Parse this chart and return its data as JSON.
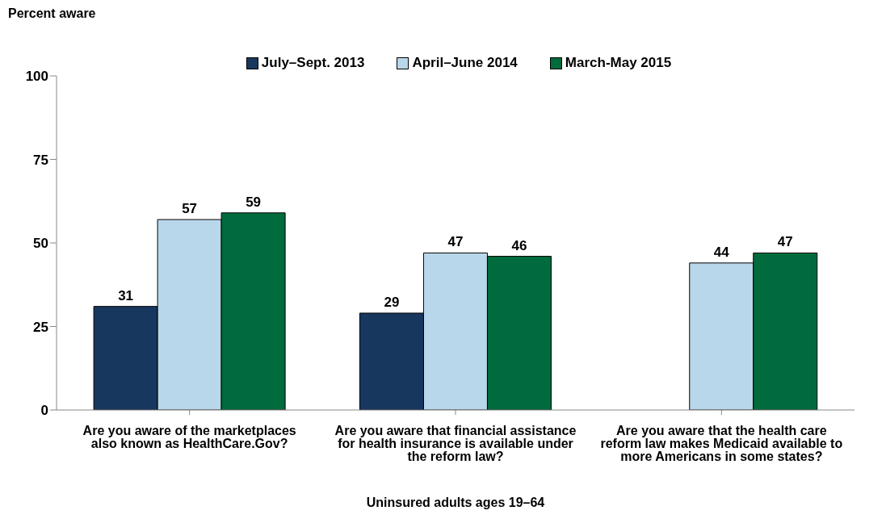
{
  "chart_data": {
    "type": "bar",
    "ylabel": "Percent aware",
    "xlabel": "Uninsured adults ages 19–64",
    "categories": [
      "Are you aware of the marketplaces also known as HealthCare.Gov?",
      "Are you aware that financial assistance for health insurance is available under the reform law?",
      "Are you aware that the health care reform law makes Medicaid available to more Americans in some states?"
    ],
    "series": [
      {
        "name": "July–Sept. 2013",
        "color": "#17375e",
        "values": [
          31,
          29,
          null
        ]
      },
      {
        "name": "April–June 2014",
        "color": "#b9d7ea",
        "values": [
          57,
          47,
          44
        ]
      },
      {
        "name": "March-May 2015",
        "color": "#006b3c",
        "values": [
          59,
          46,
          47
        ]
      }
    ],
    "ylim": [
      0,
      100
    ],
    "yticks": [
      0,
      25,
      50,
      75,
      100
    ],
    "data_labels": true,
    "legend": "top",
    "grid": false
  }
}
